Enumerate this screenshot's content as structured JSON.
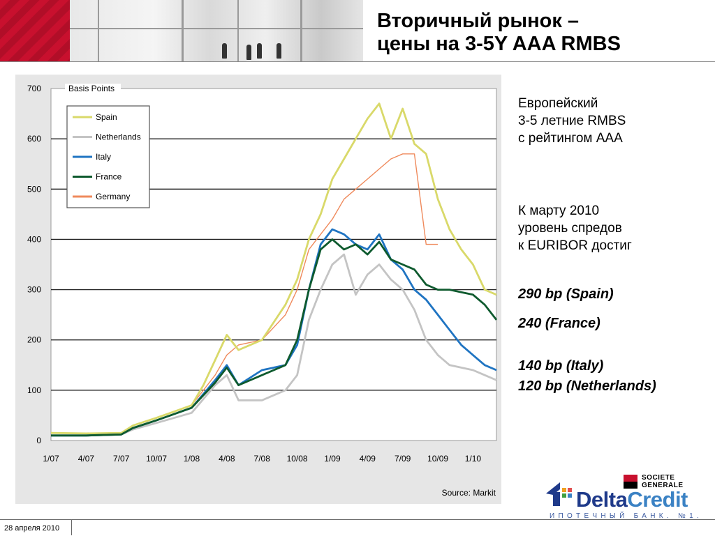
{
  "header": {
    "title_line1": "Вторичный рынок –",
    "title_line2": "цены на 3-5Y AAA RMBS"
  },
  "side_panel": {
    "block1": [
      "Европейский",
      "3-5 летние RMBS",
      "с рейтингом AAA"
    ],
    "block2": [
      "К марту 2010",
      "уровень спредов",
      "к EURIBOR достиг"
    ],
    "spain": "290 bp (Spain)",
    "france": "240 (France)",
    "italy": "140 bp (Italy)",
    "netherlands": "120 bp (Netherlands)"
  },
  "footer": {
    "date": "28 апреля 2010"
  },
  "logos": {
    "sg_line1": "SOCIETE",
    "sg_line2": "GENERALE",
    "dc_delta": "Delta",
    "dc_credit": "Credit",
    "dc_tagline": "ИПОТЕЧНЫЙ БАНК. №1."
  },
  "colors": {
    "spain": "#d9d96a",
    "netherlands": "#c4c4c4",
    "italy": "#1f74c2",
    "france": "#0e5a2e",
    "germany": "#ef8a5c",
    "brand_red": "#c8102e"
  },
  "chart_data": {
    "type": "line",
    "axis_title": "Basis Points",
    "source": "Source: Markit",
    "ylim": [
      0,
      700
    ],
    "y_ticks": [
      "0",
      "100",
      "200",
      "300",
      "400",
      "500",
      "600",
      "700"
    ],
    "x_ticks": [
      "1/07",
      "4/07",
      "7/07",
      "10/07",
      "1/08",
      "4/08",
      "7/08",
      "10/08",
      "1/09",
      "4/09",
      "7/09",
      "10/09",
      "1/10"
    ],
    "xlim": [
      "2007-01",
      "2010-03"
    ],
    "grid": "horizontal",
    "legend_position": "top-left",
    "series": [
      {
        "name": "Spain",
        "color": "#d9d96a",
        "points": [
          [
            "2007-01",
            15
          ],
          [
            "2007-04",
            14
          ],
          [
            "2007-07",
            15
          ],
          [
            "2007-08",
            30
          ],
          [
            "2007-10",
            45
          ],
          [
            "2008-01",
            70
          ],
          [
            "2008-02",
            110
          ],
          [
            "2008-03",
            160
          ],
          [
            "2008-04",
            210
          ],
          [
            "2008-05",
            180
          ],
          [
            "2008-07",
            200
          ],
          [
            "2008-09",
            270
          ],
          [
            "2008-10",
            320
          ],
          [
            "2008-11",
            400
          ],
          [
            "2008-12",
            450
          ],
          [
            "2009-01",
            520
          ],
          [
            "2009-02",
            560
          ],
          [
            "2009-03",
            600
          ],
          [
            "2009-04",
            640
          ],
          [
            "2009-05",
            670
          ],
          [
            "2009-06",
            600
          ],
          [
            "2009-07",
            660
          ],
          [
            "2009-08",
            590
          ],
          [
            "2009-09",
            570
          ],
          [
            "2009-10",
            480
          ],
          [
            "2009-11",
            420
          ],
          [
            "2009-12",
            380
          ],
          [
            "2010-01",
            350
          ],
          [
            "2010-02",
            300
          ],
          [
            "2010-03",
            290
          ]
        ]
      },
      {
        "name": "Netherlands",
        "color": "#c4c4c4",
        "points": [
          [
            "2007-01",
            10
          ],
          [
            "2007-04",
            10
          ],
          [
            "2007-07",
            12
          ],
          [
            "2007-08",
            22
          ],
          [
            "2007-10",
            35
          ],
          [
            "2008-01",
            55
          ],
          [
            "2008-03",
            110
          ],
          [
            "2008-04",
            130
          ],
          [
            "2008-05",
            80
          ],
          [
            "2008-07",
            80
          ],
          [
            "2008-09",
            100
          ],
          [
            "2008-10",
            130
          ],
          [
            "2008-11",
            240
          ],
          [
            "2008-12",
            300
          ],
          [
            "2009-01",
            350
          ],
          [
            "2009-02",
            370
          ],
          [
            "2009-03",
            290
          ],
          [
            "2009-04",
            330
          ],
          [
            "2009-05",
            350
          ],
          [
            "2009-06",
            320
          ],
          [
            "2009-07",
            300
          ],
          [
            "2009-08",
            260
          ],
          [
            "2009-09",
            200
          ],
          [
            "2009-10",
            170
          ],
          [
            "2009-11",
            150
          ],
          [
            "2009-12",
            145
          ],
          [
            "2010-01",
            140
          ],
          [
            "2010-02",
            130
          ],
          [
            "2010-03",
            120
          ]
        ]
      },
      {
        "name": "Italy",
        "color": "#1f74c2",
        "points": [
          [
            "2007-01",
            10
          ],
          [
            "2007-04",
            10
          ],
          [
            "2007-07",
            12
          ],
          [
            "2007-08",
            25
          ],
          [
            "2007-10",
            40
          ],
          [
            "2008-01",
            65
          ],
          [
            "2008-03",
            120
          ],
          [
            "2008-04",
            150
          ],
          [
            "2008-05",
            110
          ],
          [
            "2008-07",
            140
          ],
          [
            "2008-09",
            150
          ],
          [
            "2008-10",
            190
          ],
          [
            "2008-11",
            300
          ],
          [
            "2008-12",
            390
          ],
          [
            "2009-01",
            420
          ],
          [
            "2009-02",
            410
          ],
          [
            "2009-03",
            390
          ],
          [
            "2009-04",
            380
          ],
          [
            "2009-05",
            410
          ],
          [
            "2009-06",
            360
          ],
          [
            "2009-07",
            340
          ],
          [
            "2009-08",
            300
          ],
          [
            "2009-09",
            280
          ],
          [
            "2009-10",
            250
          ],
          [
            "2009-11",
            220
          ],
          [
            "2009-12",
            190
          ],
          [
            "2010-01",
            170
          ],
          [
            "2010-02",
            150
          ],
          [
            "2010-03",
            140
          ]
        ]
      },
      {
        "name": "France",
        "color": "#0e5a2e",
        "points": [
          [
            "2007-01",
            10
          ],
          [
            "2007-04",
            10
          ],
          [
            "2007-07",
            12
          ],
          [
            "2007-08",
            25
          ],
          [
            "2007-10",
            40
          ],
          [
            "2008-01",
            65
          ],
          [
            "2008-03",
            115
          ],
          [
            "2008-04",
            145
          ],
          [
            "2008-05",
            110
          ],
          [
            "2008-07",
            130
          ],
          [
            "2008-09",
            150
          ],
          [
            "2008-10",
            200
          ],
          [
            "2008-11",
            300
          ],
          [
            "2008-12",
            380
          ],
          [
            "2009-01",
            400
          ],
          [
            "2009-02",
            380
          ],
          [
            "2009-03",
            390
          ],
          [
            "2009-04",
            370
          ],
          [
            "2009-05",
            395
          ],
          [
            "2009-06",
            360
          ],
          [
            "2009-07",
            350
          ],
          [
            "2009-08",
            340
          ],
          [
            "2009-09",
            310
          ],
          [
            "2009-10",
            300
          ],
          [
            "2009-11",
            300
          ],
          [
            "2009-12",
            295
          ],
          [
            "2010-01",
            290
          ],
          [
            "2010-02",
            270
          ],
          [
            "2010-03",
            240
          ]
        ]
      },
      {
        "name": "Germany",
        "color": "#ef8a5c",
        "points": [
          [
            "2007-01",
            15
          ],
          [
            "2007-04",
            15
          ],
          [
            "2007-07",
            15
          ],
          [
            "2007-08",
            30
          ],
          [
            "2007-10",
            45
          ],
          [
            "2008-01",
            70
          ],
          [
            "2008-03",
            130
          ],
          [
            "2008-04",
            170
          ],
          [
            "2008-05",
            190
          ],
          [
            "2008-07",
            200
          ],
          [
            "2008-09",
            250
          ],
          [
            "2008-10",
            300
          ],
          [
            "2008-11",
            380
          ],
          [
            "2008-12",
            410
          ],
          [
            "2009-01",
            440
          ],
          [
            "2009-02",
            480
          ],
          [
            "2009-03",
            500
          ],
          [
            "2009-04",
            520
          ],
          [
            "2009-05",
            540
          ],
          [
            "2009-06",
            560
          ],
          [
            "2009-07",
            570
          ],
          [
            "2009-08",
            570
          ],
          [
            "2009-09",
            390
          ],
          [
            "2009-10",
            390
          ]
        ]
      }
    ]
  }
}
